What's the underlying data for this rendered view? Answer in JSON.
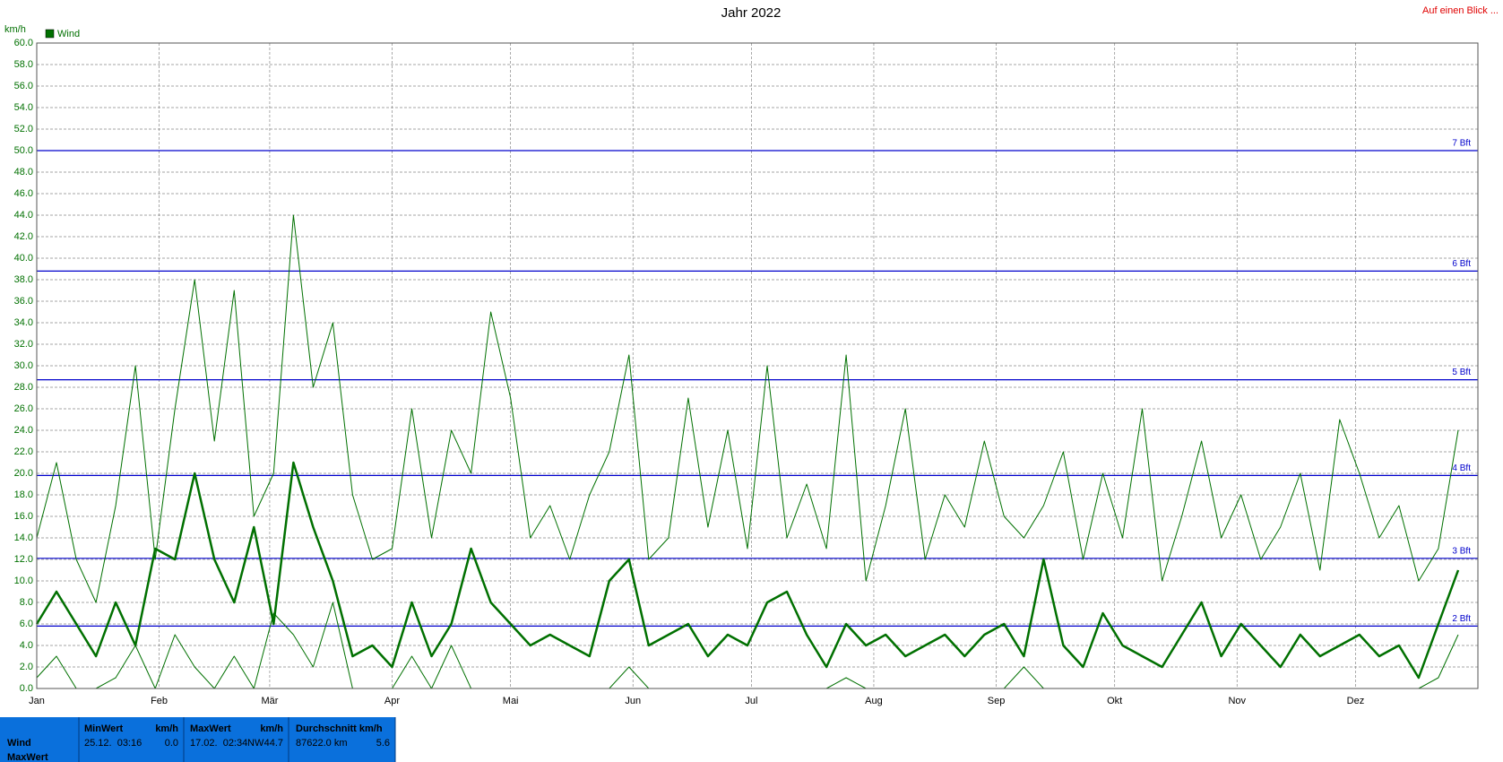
{
  "chart_data": {
    "type": "line",
    "title": "Jahr 2022",
    "corner_link": "Auf einen Blick ...",
    "y_unit": "km/h",
    "xlim": [
      0,
      365
    ],
    "xticks": [
      {
        "value": 0,
        "label": "Jan"
      },
      {
        "value": 31,
        "label": "Feb"
      },
      {
        "value": 59,
        "label": "Mär"
      },
      {
        "value": 90,
        "label": "Apr"
      },
      {
        "value": 120,
        "label": "Mai"
      },
      {
        "value": 151,
        "label": "Jun"
      },
      {
        "value": 181,
        "label": "Jul"
      },
      {
        "value": 212,
        "label": "Aug"
      },
      {
        "value": 243,
        "label": "Sep"
      },
      {
        "value": 273,
        "label": "Okt"
      },
      {
        "value": 304,
        "label": "Nov"
      },
      {
        "value": 334,
        "label": "Dez"
      }
    ],
    "ylim": [
      0,
      60
    ],
    "yticks": [
      {
        "value": 0,
        "label": "0.0"
      },
      {
        "value": 2,
        "label": "2.0"
      },
      {
        "value": 4,
        "label": "4.0"
      },
      {
        "value": 6,
        "label": "6.0"
      },
      {
        "value": 8,
        "label": "8.0"
      },
      {
        "value": 10,
        "label": "10.0"
      },
      {
        "value": 12,
        "label": "12.0"
      },
      {
        "value": 14,
        "label": "14.0"
      },
      {
        "value": 16,
        "label": "16.0"
      },
      {
        "value": 18,
        "label": "18.0"
      },
      {
        "value": 20,
        "label": "20.0"
      },
      {
        "value": 22,
        "label": "22.0"
      },
      {
        "value": 24,
        "label": "24.0"
      },
      {
        "value": 26,
        "label": "26.0"
      },
      {
        "value": 28,
        "label": "28.0"
      },
      {
        "value": 30,
        "label": "30.0"
      },
      {
        "value": 32,
        "label": "32.0"
      },
      {
        "value": 34,
        "label": "34.0"
      },
      {
        "value": 36,
        "label": "36.0"
      },
      {
        "value": 38,
        "label": "38.0"
      },
      {
        "value": 40,
        "label": "40.0"
      },
      {
        "value": 42,
        "label": "42.0"
      },
      {
        "value": 44,
        "label": "44.0"
      },
      {
        "value": 46,
        "label": "46.0"
      },
      {
        "value": 48,
        "label": "48.0"
      },
      {
        "value": 50,
        "label": "50.0"
      },
      {
        "value": 52,
        "label": "52.0"
      },
      {
        "value": 54,
        "label": "54.0"
      },
      {
        "value": 56,
        "label": "56.0"
      },
      {
        "value": 58,
        "label": "58.0"
      },
      {
        "value": 60,
        "label": "60.0"
      }
    ],
    "grid": true,
    "reference_lines": [
      {
        "value": 5.8,
        "label": "2 Bft"
      },
      {
        "value": 12.1,
        "label": "3 Bft"
      },
      {
        "value": 19.8,
        "label": "4 Bft"
      },
      {
        "value": 28.7,
        "label": "5 Bft"
      },
      {
        "value": 38.8,
        "label": "6 Bft"
      },
      {
        "value": 50.0,
        "label": "7 Bft"
      }
    ],
    "reference_color": "#0000cc",
    "x": [
      0,
      5,
      10,
      15,
      20,
      25,
      30,
      35,
      40,
      45,
      50,
      55,
      60,
      65,
      70,
      75,
      80,
      85,
      90,
      95,
      100,
      105,
      110,
      115,
      120,
      125,
      130,
      135,
      140,
      145,
      150,
      155,
      160,
      165,
      170,
      175,
      180,
      185,
      190,
      195,
      200,
      205,
      210,
      215,
      220,
      225,
      230,
      235,
      240,
      245,
      250,
      255,
      260,
      265,
      270,
      275,
      280,
      285,
      290,
      295,
      300,
      305,
      310,
      315,
      320,
      325,
      330,
      335,
      340,
      345,
      350,
      355,
      360
    ],
    "series": [
      {
        "name": "Wind",
        "color": "#007000",
        "values": [
          6,
          9,
          6,
          3,
          8,
          4,
          13,
          12,
          20,
          12,
          8,
          15,
          6,
          21,
          15,
          10,
          3,
          4,
          2,
          8,
          3,
          6,
          13,
          8,
          6,
          4,
          5,
          4,
          3,
          10,
          12,
          4,
          5,
          6,
          3,
          5,
          4,
          8,
          9,
          5,
          2,
          6,
          4,
          5,
          3,
          4,
          5,
          3,
          5,
          6,
          3,
          12,
          4,
          2,
          7,
          4,
          3,
          2,
          5,
          8,
          3,
          6,
          4,
          2,
          5,
          3,
          4,
          5,
          3,
          4,
          1,
          6,
          11
        ],
        "max_values": [
          14,
          21,
          12,
          8,
          17,
          30,
          12,
          26,
          38,
          23,
          37,
          16,
          20,
          44,
          28,
          34,
          18,
          12,
          13,
          26,
          14,
          24,
          20,
          35,
          27,
          14,
          17,
          12,
          18,
          22,
          31,
          12,
          14,
          27,
          15,
          24,
          13,
          30,
          14,
          19,
          13,
          31,
          10,
          17,
          26,
          12,
          18,
          15,
          23,
          16,
          14,
          17,
          22,
          12,
          20,
          14,
          26,
          10,
          16,
          23,
          14,
          18,
          12,
          15,
          20,
          11,
          25,
          20,
          14,
          17,
          10,
          13,
          24
        ],
        "min_values": [
          1,
          3,
          0,
          0,
          1,
          4,
          0,
          5,
          2,
          0,
          3,
          0,
          7,
          5,
          2,
          8,
          0,
          0,
          0,
          3,
          0,
          4,
          0,
          0,
          0,
          0,
          0,
          0,
          0,
          0,
          2,
          0,
          0,
          0,
          0,
          0,
          0,
          0,
          0,
          0,
          0,
          1,
          0,
          0,
          0,
          0,
          0,
          0,
          0,
          0,
          2,
          0,
          0,
          0,
          0,
          0,
          0,
          0,
          0,
          0,
          0,
          0,
          0,
          0,
          0,
          0,
          0,
          0,
          0,
          0,
          0,
          1,
          5
        ]
      }
    ]
  },
  "stats": {
    "row_labels": [
      "Wind",
      "MaxWert"
    ],
    "columns": [
      {
        "header": "MinWert",
        "unit": "km/h",
        "time": "25.12.  03:16",
        "value": "0.0"
      },
      {
        "header": "MaxWert",
        "unit": "km/h",
        "time": "17.02.  02:34",
        "dir": "NW",
        "value": "44.7"
      },
      {
        "header": "Durchschnitt km/h",
        "time": "87622.0 km",
        "value": "5.6"
      }
    ]
  }
}
